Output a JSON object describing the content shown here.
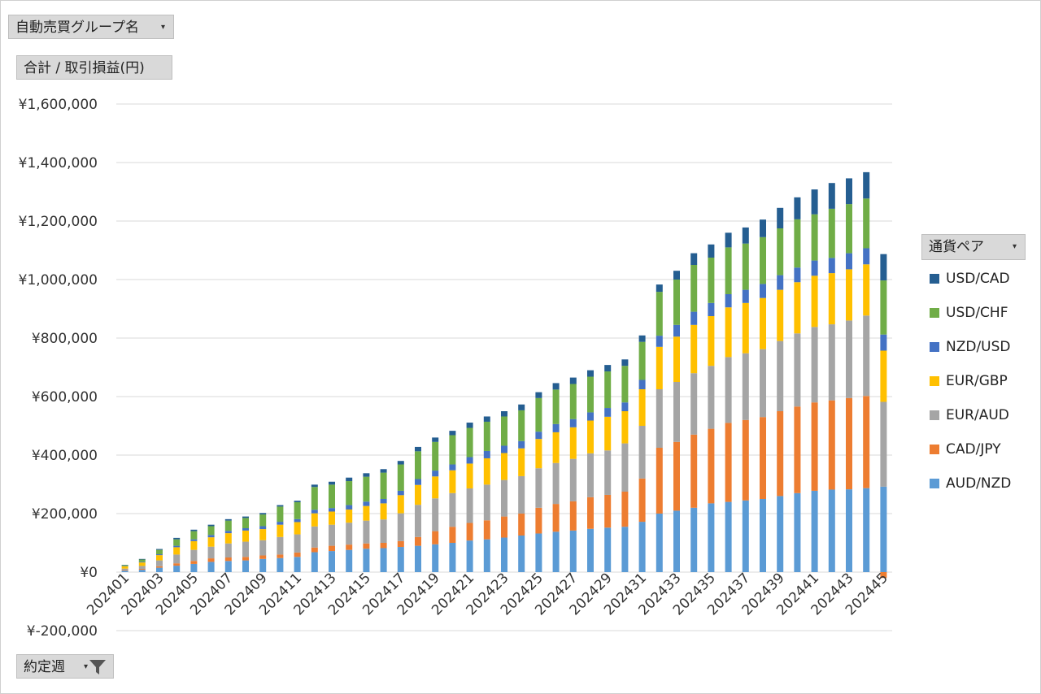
{
  "filters": {
    "group_label": "自動売買グループ名",
    "value_label": "合計 / 取引損益(円)",
    "date_label": "約定週",
    "legend_title": "通貨ペア"
  },
  "chart_data": {
    "type": "bar",
    "stacked": true,
    "title": "",
    "xlabel": "",
    "ylabel": "",
    "ylim": [
      -200000,
      1600000
    ],
    "yticks": [
      -200000,
      0,
      200000,
      400000,
      600000,
      800000,
      1000000,
      1200000,
      1400000,
      1600000
    ],
    "ytick_labels": [
      "¥-200,000",
      "¥0",
      "¥200,000",
      "¥400,000",
      "¥600,000",
      "¥800,000",
      "¥1,000,000",
      "¥1,200,000",
      "¥1,400,000",
      "¥1,600,000"
    ],
    "grid": true,
    "legend_position": "right",
    "categories": [
      "202401",
      "202402",
      "202403",
      "202404",
      "202405",
      "202406",
      "202407",
      "202408",
      "202409",
      "202410",
      "202411",
      "202412",
      "202413",
      "202414",
      "202415",
      "202416",
      "202417",
      "202418",
      "202419",
      "202420",
      "202421",
      "202422",
      "202423",
      "202424",
      "202425",
      "202426",
      "202427",
      "202428",
      "202429",
      "202430",
      "202431",
      "202432",
      "202433",
      "202434",
      "202435",
      "202436",
      "202437",
      "202438",
      "202439",
      "202440",
      "202441",
      "202442",
      "202443",
      "202444",
      "202445"
    ],
    "shown_tick_labels": [
      "202401",
      "202403",
      "202405",
      "202407",
      "202409",
      "202411",
      "202413",
      "202415",
      "202417",
      "202419",
      "202421",
      "202423",
      "202425",
      "202427",
      "202429",
      "202431",
      "202433",
      "202435",
      "202437",
      "202439",
      "202441",
      "202443",
      "202445"
    ],
    "series": [
      {
        "name": "AUD/NZD",
        "color": "#5b9bd5",
        "values": [
          5000,
          8000,
          15000,
          22000,
          28000,
          35000,
          38000,
          40000,
          45000,
          48000,
          52000,
          68000,
          72000,
          76000,
          80000,
          82000,
          86000,
          90000,
          95000,
          100000,
          108000,
          112000,
          118000,
          125000,
          132000,
          138000,
          142000,
          148000,
          152000,
          155000,
          172000,
          200000,
          210000,
          220000,
          235000,
          240000,
          245000,
          250000,
          260000,
          270000,
          278000,
          282000,
          283000,
          287000,
          292000
        ]
      },
      {
        "name": "CAD/JPY",
        "color": "#ed7d31",
        "values": [
          2000,
          3000,
          5000,
          8000,
          10000,
          12000,
          12000,
          12000,
          12000,
          12000,
          15000,
          16000,
          18000,
          18000,
          18000,
          18000,
          20000,
          30000,
          45000,
          55000,
          60000,
          65000,
          72000,
          75000,
          88000,
          95000,
          100000,
          108000,
          112000,
          120000,
          148000,
          225000,
          235000,
          250000,
          255000,
          270000,
          275000,
          280000,
          290000,
          296000,
          302000,
          305000,
          312000,
          315000,
          -20000
        ]
      },
      {
        "name": "EUR/AUD",
        "color": "#a5a5a5",
        "values": [
          5000,
          10000,
          20000,
          30000,
          38000,
          40000,
          48000,
          52000,
          52000,
          60000,
          62000,
          72000,
          72000,
          75000,
          78000,
          80000,
          95000,
          110000,
          112000,
          115000,
          118000,
          122000,
          125000,
          128000,
          135000,
          140000,
          145000,
          150000,
          152000,
          165000,
          180000,
          200000,
          205000,
          210000,
          215000,
          225000,
          228000,
          232000,
          240000,
          250000,
          258000,
          260000,
          265000,
          275000,
          290000
        ]
      },
      {
        "name": "EUR/GBP",
        "color": "#ffc000",
        "values": [
          8000,
          12000,
          18000,
          25000,
          30000,
          32000,
          35000,
          38000,
          38000,
          42000,
          42000,
          45000,
          45000,
          45000,
          50000,
          55000,
          62000,
          68000,
          75000,
          78000,
          85000,
          90000,
          92000,
          95000,
          100000,
          105000,
          108000,
          112000,
          115000,
          110000,
          125000,
          145000,
          155000,
          165000,
          170000,
          170000,
          172000,
          175000,
          175000,
          175000,
          175000,
          175000,
          175000,
          175000,
          175000
        ]
      },
      {
        "name": "NZD/USD",
        "color": "#4472c4",
        "values": [
          1000,
          2000,
          3000,
          5000,
          6000,
          8000,
          8000,
          8000,
          10000,
          10000,
          10000,
          12000,
          12000,
          15000,
          15000,
          15000,
          15000,
          20000,
          20000,
          20000,
          22000,
          25000,
          25000,
          25000,
          25000,
          28000,
          28000,
          28000,
          30000,
          30000,
          32000,
          38000,
          40000,
          45000,
          45000,
          45000,
          45000,
          48000,
          50000,
          50000,
          52000,
          52000,
          55000,
          55000,
          55000
        ]
      },
      {
        "name": "USD/CHF",
        "color": "#70ad47",
        "values": [
          3000,
          8000,
          15000,
          22000,
          28000,
          30000,
          35000,
          35000,
          40000,
          52000,
          58000,
          78000,
          80000,
          82000,
          85000,
          90000,
          90000,
          95000,
          98000,
          100000,
          100000,
          100000,
          100000,
          105000,
          115000,
          118000,
          120000,
          122000,
          125000,
          125000,
          130000,
          150000,
          155000,
          160000,
          155000,
          160000,
          158000,
          160000,
          160000,
          165000,
          158000,
          168000,
          168000,
          170000,
          185000
        ]
      },
      {
        "name": "USD/CAD",
        "color": "#255e91",
        "values": [
          1000,
          2000,
          3000,
          5000,
          5000,
          5000,
          5000,
          5000,
          5000,
          5000,
          5000,
          8000,
          10000,
          12000,
          12000,
          12000,
          12000,
          15000,
          15000,
          15000,
          18000,
          18000,
          18000,
          20000,
          20000,
          22000,
          22000,
          22000,
          22000,
          22000,
          22000,
          25000,
          30000,
          40000,
          45000,
          50000,
          55000,
          60000,
          70000,
          75000,
          85000,
          88000,
          88000,
          90000,
          90000
        ]
      }
    ]
  }
}
